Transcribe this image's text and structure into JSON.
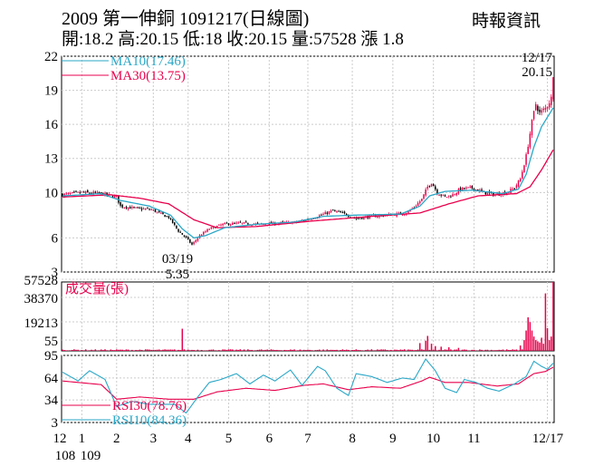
{
  "header": {
    "title": "2009  第一伸銅 1091217(日線圖)",
    "source": "時報資訊",
    "quote": "開:18.2 高:20.15 低:18 收:20.15 量:57528 漲 1.8"
  },
  "colors": {
    "up": "#e8004c",
    "down": "#000000",
    "ma10": "#2aa7c7",
    "ma30": "#e8004c",
    "volume": "#e8004c",
    "rsi30": "#e8004c",
    "rsi10": "#2aa7c7",
    "grid": "#cccccc"
  },
  "chart_data": [
    {
      "type": "candlestick",
      "panel": "price",
      "y_ticks": [
        "22",
        "19",
        "16",
        "13",
        "10",
        "6",
        "3"
      ],
      "ylim": [
        3,
        22
      ],
      "legend": [
        {
          "name": "MA10(17.46)",
          "color": "#2aa7c7"
        },
        {
          "name": "MA30(13.75)",
          "color": "#e8004c"
        }
      ],
      "annotations": [
        {
          "text_date": "03/19",
          "text_value": "5.35",
          "x_index": 67,
          "y": 5.35
        },
        {
          "text_date": "12/17",
          "text_value": "20.15",
          "x_index": 254,
          "y": 20.15
        }
      ],
      "anchors": [
        [
          0,
          9.8
        ],
        [
          10,
          10.0
        ],
        [
          20,
          9.9
        ],
        [
          28,
          9.6
        ],
        [
          30,
          8.8
        ],
        [
          38,
          8.6
        ],
        [
          46,
          8.5
        ],
        [
          55,
          7.8
        ],
        [
          60,
          6.6
        ],
        [
          64,
          6.0
        ],
        [
          67,
          5.4
        ],
        [
          71,
          6.2
        ],
        [
          76,
          6.8
        ],
        [
          83,
          7.2
        ],
        [
          92,
          7.3
        ],
        [
          102,
          7.2
        ],
        [
          112,
          7.3
        ],
        [
          122,
          7.4
        ],
        [
          132,
          7.9
        ],
        [
          140,
          8.4
        ],
        [
          146,
          8.1
        ],
        [
          152,
          7.7
        ],
        [
          160,
          7.9
        ],
        [
          168,
          8.0
        ],
        [
          178,
          8.2
        ],
        [
          182,
          8.7
        ],
        [
          186,
          9.4
        ],
        [
          189,
          10.5
        ],
        [
          191,
          10.9
        ],
        [
          194,
          10.0
        ],
        [
          198,
          9.6
        ],
        [
          202,
          9.8
        ],
        [
          206,
          10.3
        ],
        [
          212,
          10.4
        ],
        [
          218,
          10.0
        ],
        [
          224,
          9.8
        ],
        [
          230,
          10.0
        ],
        [
          234,
          10.4
        ],
        [
          237,
          11.2
        ],
        [
          240,
          13.2
        ],
        [
          243,
          16.2
        ],
        [
          245,
          17.8
        ],
        [
          247,
          17.0
        ],
        [
          250,
          17.4
        ],
        [
          253,
          18.3
        ],
        [
          254,
          20.15
        ]
      ],
      "ma10_anchors": [
        [
          0,
          9.7
        ],
        [
          20,
          9.9
        ],
        [
          30,
          9.3
        ],
        [
          45,
          8.8
        ],
        [
          56,
          8.0
        ],
        [
          62,
          6.8
        ],
        [
          68,
          6.0
        ],
        [
          74,
          6.2
        ],
        [
          84,
          6.9
        ],
        [
          100,
          7.2
        ],
        [
          120,
          7.4
        ],
        [
          135,
          7.9
        ],
        [
          150,
          8.0
        ],
        [
          175,
          8.1
        ],
        [
          185,
          8.8
        ],
        [
          190,
          9.7
        ],
        [
          198,
          10.1
        ],
        [
          212,
          10.2
        ],
        [
          228,
          9.9
        ],
        [
          236,
          10.3
        ],
        [
          240,
          11.6
        ],
        [
          244,
          14.0
        ],
        [
          248,
          15.8
        ],
        [
          252,
          16.9
        ],
        [
          254,
          17.46
        ]
      ],
      "ma30_anchors": [
        [
          0,
          9.6
        ],
        [
          25,
          9.8
        ],
        [
          40,
          9.5
        ],
        [
          55,
          9.0
        ],
        [
          68,
          7.6
        ],
        [
          80,
          6.9
        ],
        [
          100,
          7.0
        ],
        [
          130,
          7.5
        ],
        [
          160,
          7.9
        ],
        [
          185,
          8.2
        ],
        [
          200,
          9.0
        ],
        [
          215,
          9.7
        ],
        [
          235,
          9.9
        ],
        [
          242,
          10.5
        ],
        [
          248,
          12.0
        ],
        [
          254,
          13.75
        ]
      ]
    },
    {
      "type": "bar",
      "panel": "volume",
      "title": "成交量(張)",
      "y_ticks": [
        "57528",
        "38370",
        "19213",
        "55"
      ],
      "ylim": [
        0,
        57528
      ],
      "spikes": [
        {
          "i": 62,
          "v": 18500
        },
        {
          "i": 185,
          "v": 6500
        },
        {
          "i": 188,
          "v": 8500
        },
        {
          "i": 189,
          "v": 12500
        },
        {
          "i": 191,
          "v": 6000
        },
        {
          "i": 193,
          "v": 4000
        },
        {
          "i": 196,
          "v": 3500
        },
        {
          "i": 200,
          "v": 3000
        },
        {
          "i": 205,
          "v": 2500
        },
        {
          "i": 237,
          "v": 4500
        },
        {
          "i": 239,
          "v": 9000
        },
        {
          "i": 240,
          "v": 17000
        },
        {
          "i": 241,
          "v": 28000
        },
        {
          "i": 242,
          "v": 24000
        },
        {
          "i": 243,
          "v": 17000
        },
        {
          "i": 244,
          "v": 12000
        },
        {
          "i": 245,
          "v": 9000
        },
        {
          "i": 246,
          "v": 8000
        },
        {
          "i": 247,
          "v": 7000
        },
        {
          "i": 248,
          "v": 11000
        },
        {
          "i": 249,
          "v": 6000
        },
        {
          "i": 250,
          "v": 48000
        },
        {
          "i": 251,
          "v": 19000
        },
        {
          "i": 252,
          "v": 9000
        },
        {
          "i": 253,
          "v": 12000
        },
        {
          "i": 254,
          "v": 57528
        }
      ]
    },
    {
      "type": "line",
      "panel": "rsi",
      "y_ticks": [
        "95",
        "64",
        "34",
        "3"
      ],
      "ylim": [
        3,
        95
      ],
      "series": [
        {
          "name": "RSI30(78.76)",
          "color": "#e8004c",
          "anchors": [
            [
              0,
              60
            ],
            [
              20,
              55
            ],
            [
              28,
              35
            ],
            [
              40,
              38
            ],
            [
              55,
              35
            ],
            [
              68,
              35
            ],
            [
              80,
              45
            ],
            [
              95,
              50
            ],
            [
              110,
              47
            ],
            [
              125,
              54
            ],
            [
              135,
              56
            ],
            [
              148,
              48
            ],
            [
              160,
              52
            ],
            [
              175,
              50
            ],
            [
              186,
              60
            ],
            [
              190,
              65
            ],
            [
              198,
              58
            ],
            [
              210,
              58
            ],
            [
              225,
              53
            ],
            [
              236,
              56
            ],
            [
              244,
              70
            ],
            [
              250,
              73
            ],
            [
              254,
              78.76
            ]
          ]
        },
        {
          "name": "RSI10(84.36)",
          "color": "#2aa7c7",
          "anchors": [
            [
              0,
              72
            ],
            [
              8,
              60
            ],
            [
              14,
              74
            ],
            [
              22,
              62
            ],
            [
              28,
              25
            ],
            [
              36,
              32
            ],
            [
              45,
              28
            ],
            [
              58,
              28
            ],
            [
              64,
              16
            ],
            [
              70,
              38
            ],
            [
              76,
              58
            ],
            [
              82,
              62
            ],
            [
              90,
              70
            ],
            [
              97,
              56
            ],
            [
              104,
              68
            ],
            [
              110,
              60
            ],
            [
              118,
              75
            ],
            [
              124,
              54
            ],
            [
              132,
              80
            ],
            [
              136,
              74
            ],
            [
              142,
              50
            ],
            [
              148,
              40
            ],
            [
              152,
              70
            ],
            [
              160,
              66
            ],
            [
              168,
              58
            ],
            [
              176,
              64
            ],
            [
              182,
              62
            ],
            [
              188,
              90
            ],
            [
              193,
              74
            ],
            [
              198,
              50
            ],
            [
              204,
              44
            ],
            [
              208,
              62
            ],
            [
              214,
              58
            ],
            [
              220,
              50
            ],
            [
              226,
              46
            ],
            [
              234,
              56
            ],
            [
              240,
              66
            ],
            [
              244,
              87
            ],
            [
              248,
              80
            ],
            [
              251,
              76
            ],
            [
              254,
              84.36
            ]
          ]
        }
      ]
    }
  ],
  "x_axis": {
    "ticks": [
      {
        "label": "12",
        "sub": "108",
        "i": 0
      },
      {
        "label": "1",
        "sub": "109",
        "i": 10
      },
      {
        "label": "2",
        "sub": "",
        "i": 28
      },
      {
        "label": "3",
        "sub": "",
        "i": 47
      },
      {
        "label": "4",
        "sub": "",
        "i": 65
      },
      {
        "label": "5",
        "sub": "",
        "i": 86
      },
      {
        "label": "6",
        "sub": "",
        "i": 107
      },
      {
        "label": "7",
        "sub": "",
        "i": 127
      },
      {
        "label": "8",
        "sub": "",
        "i": 150
      },
      {
        "label": "9",
        "sub": "",
        "i": 171
      },
      {
        "label": "10",
        "sub": "",
        "i": 192
      },
      {
        "label": "11",
        "sub": "",
        "i": 213
      },
      {
        "label": "12/17",
        "sub": "",
        "i": 251
      }
    ]
  }
}
